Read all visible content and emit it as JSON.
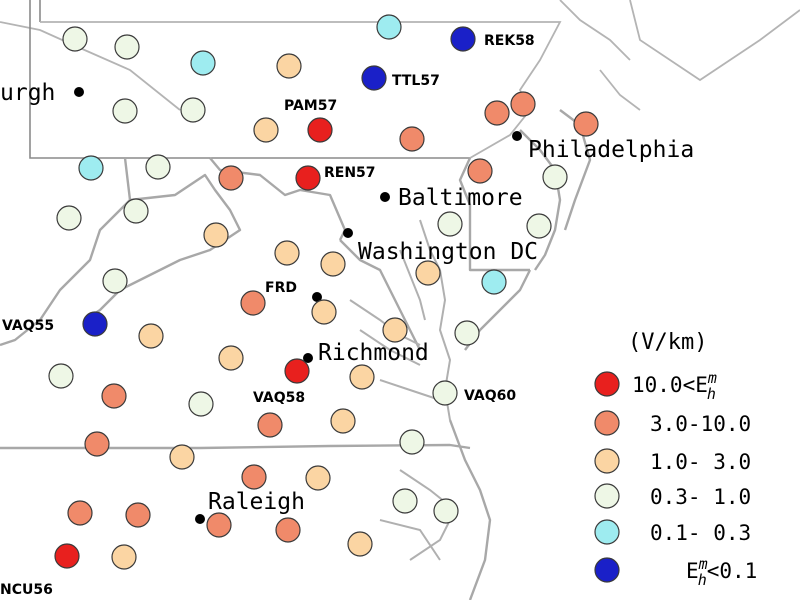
{
  "colors": {
    "class1": "#e8201e",
    "class2": "#f08a6a",
    "class3": "#fbd5a3",
    "class4": "#eef7e6",
    "class5": "#9eecf0",
    "class6": "#1a20c8"
  },
  "cities": [
    {
      "id": "pittsburgh",
      "label": "urgh"
    },
    {
      "id": "philadelphia",
      "label": "Philadelphia"
    },
    {
      "id": "baltimore",
      "label": "Baltimore"
    },
    {
      "id": "washington",
      "label": "Washington DC"
    },
    {
      "id": "frd",
      "label": "FRD"
    },
    {
      "id": "richmond",
      "label": "Richmond"
    },
    {
      "id": "raleigh",
      "label": "Raleigh"
    }
  ],
  "site_labels": {
    "rek58": "REK58",
    "ttl57": "TTL57",
    "pam57": "PAM57",
    "ren57": "REN57",
    "vaq55": "VAQ55",
    "vaq58": "VAQ58",
    "vaq60": "VAQ60",
    "ncu56": "NCU56"
  },
  "sites": [
    {
      "cls": 4
    },
    {
      "cls": 4
    },
    {
      "cls": 5
    },
    {
      "cls": 6,
      "label": "REK58"
    },
    {
      "cls": 5
    },
    {
      "cls": 3
    },
    {
      "cls": 6,
      "label": "TTL57"
    },
    {
      "cls": 4
    },
    {
      "cls": 4
    },
    {
      "cls": 1,
      "label": "PAM57"
    },
    {
      "cls": 3
    },
    {
      "cls": 2
    },
    {
      "cls": 2
    },
    {
      "cls": 2
    },
    {
      "cls": 2
    },
    {
      "cls": 5
    },
    {
      "cls": 4
    },
    {
      "cls": 2
    },
    {
      "cls": 1,
      "label": "REN57"
    },
    {
      "cls": 2
    },
    {
      "cls": 4
    },
    {
      "cls": 4
    },
    {
      "cls": 4
    },
    {
      "cls": 4
    },
    {
      "cls": 3
    },
    {
      "cls": 3
    },
    {
      "cls": 3
    },
    {
      "cls": 4
    },
    {
      "cls": 4
    },
    {
      "cls": 3
    },
    {
      "cls": 5
    },
    {
      "cls": 2
    },
    {
      "cls": 3
    },
    {
      "cls": 6,
      "label": "VAQ55"
    },
    {
      "cls": 3
    },
    {
      "cls": 3
    },
    {
      "cls": 4
    },
    {
      "cls": 3
    },
    {
      "cls": 1,
      "label": "VAQ58"
    },
    {
      "cls": 3
    },
    {
      "cls": 4
    },
    {
      "cls": 2
    },
    {
      "cls": 4
    },
    {
      "cls": 4,
      "label": "VAQ60"
    },
    {
      "cls": 2
    },
    {
      "cls": 3
    },
    {
      "cls": 2
    },
    {
      "cls": 3
    },
    {
      "cls": 4
    },
    {
      "cls": 2
    },
    {
      "cls": 3
    },
    {
      "cls": 2
    },
    {
      "cls": 2
    },
    {
      "cls": 2
    },
    {
      "cls": 4
    },
    {
      "cls": 4
    },
    {
      "cls": 1,
      "label": "NCU56"
    },
    {
      "cls": 3
    },
    {
      "cls": 3
    },
    {
      "cls": 2
    }
  ],
  "legend": {
    "unit": "(V/km)",
    "items": [
      {
        "cls": 1,
        "label": "10.0<E",
        "sup": "m",
        "sub": "h",
        "after": ""
      },
      {
        "cls": 2,
        "label": "3.0-10.0"
      },
      {
        "cls": 3,
        "label": "1.0- 3.0"
      },
      {
        "cls": 4,
        "label": "0.3- 1.0"
      },
      {
        "cls": 5,
        "label": "0.1- 0.3"
      },
      {
        "cls": 6,
        "label": "E",
        "sup": "m",
        "sub": "h",
        "after": "<0.1"
      }
    ]
  }
}
